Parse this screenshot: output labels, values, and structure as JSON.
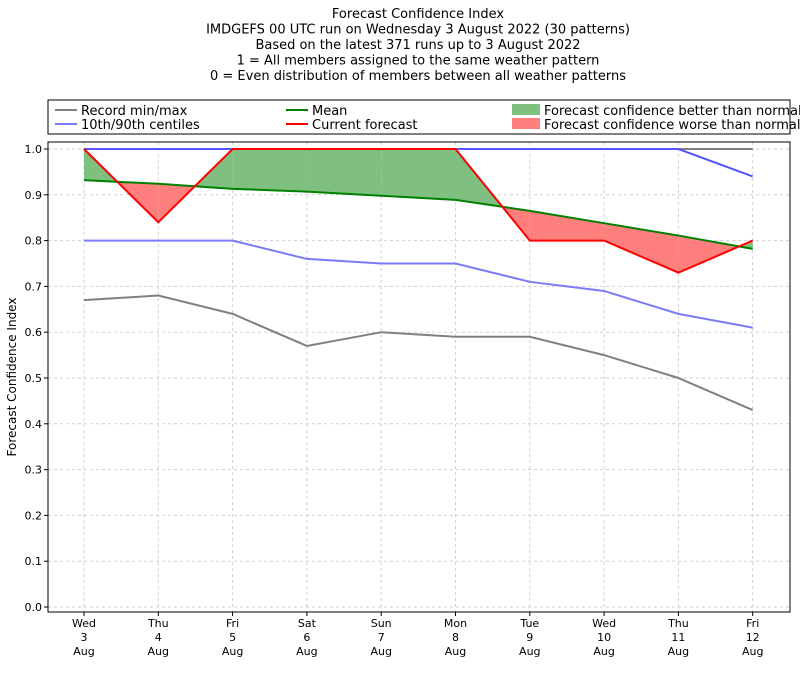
{
  "chart_data": {
    "type": "line",
    "title_lines": [
      "Forecast Confidence Index",
      "IMDGEFS 00 UTC run on Wednesday 3 August 2022 (30 patterns)",
      "Based on the latest 371 runs up to 3 August 2022",
      "1 = All members assigned to the same weather pattern",
      "0 = Even distribution of members between all weather patterns"
    ],
    "ylabel": "Forecast Confidence Index",
    "xlabel": "",
    "ylim": [
      0,
      1.0
    ],
    "yticks": [
      "0.0",
      "0.1",
      "0.2",
      "0.3",
      "0.4",
      "0.5",
      "0.6",
      "0.7",
      "0.8",
      "0.9",
      "1.0"
    ],
    "grid": true,
    "categories": [
      {
        "day": "Wed",
        "date": "3",
        "month": "Aug"
      },
      {
        "day": "Thu",
        "date": "4",
        "month": "Aug"
      },
      {
        "day": "Fri",
        "date": "5",
        "month": "Aug"
      },
      {
        "day": "Sat",
        "date": "6",
        "month": "Aug"
      },
      {
        "day": "Sun",
        "date": "7",
        "month": "Aug"
      },
      {
        "day": "Mon",
        "date": "8",
        "month": "Aug"
      },
      {
        "day": "Tue",
        "date": "9",
        "month": "Aug"
      },
      {
        "day": "Wed",
        "date": "10",
        "month": "Aug"
      },
      {
        "day": "Thu",
        "date": "11",
        "month": "Aug"
      },
      {
        "day": "Fri",
        "date": "12",
        "month": "Aug"
      }
    ],
    "series": [
      {
        "key": "record-min",
        "name": "Record min/max",
        "color": "#808080",
        "values": [
          0.67,
          0.68,
          0.64,
          0.57,
          0.6,
          0.59,
          0.59,
          0.55,
          0.5,
          0.43
        ]
      },
      {
        "key": "record-max",
        "name": "Record min/max",
        "color": "#808080",
        "values": [
          1.0,
          1.0,
          1.0,
          1.0,
          1.0,
          1.0,
          1.0,
          1.0,
          1.0,
          1.0
        ]
      },
      {
        "key": "p10",
        "name": "10th/90th centiles",
        "color": "#7b7bf7",
        "values": [
          0.8,
          0.8,
          0.8,
          0.76,
          0.75,
          0.75,
          0.71,
          0.69,
          0.64,
          0.61
        ]
      },
      {
        "key": "p90",
        "name": "10th/90th centiles",
        "color": "#5555ff",
        "values": [
          1.0,
          1.0,
          1.0,
          1.0,
          1.0,
          1.0,
          1.0,
          1.0,
          1.0,
          0.94
        ]
      },
      {
        "key": "mean",
        "name": "Mean",
        "color": "#008000",
        "values": [
          0.932,
          0.924,
          0.913,
          0.907,
          0.898,
          0.889,
          0.865,
          0.838,
          0.811,
          0.782
        ]
      },
      {
        "key": "current",
        "name": "Current forecast",
        "color": "#ff0000",
        "values": [
          1.0,
          0.84,
          1.0,
          1.0,
          1.0,
          1.0,
          0.8,
          0.8,
          0.73,
          0.8
        ]
      }
    ],
    "fill_better_color": "#7fbf7f",
    "fill_worse_color": "#ff7f7f",
    "legend": {
      "placement": "top",
      "items": [
        {
          "label": "Record min/max",
          "kind": "line",
          "color": "#808080"
        },
        {
          "label": "10th/90th centiles",
          "kind": "line",
          "color": "#7b7bf7"
        },
        {
          "label": "Mean",
          "kind": "line",
          "color": "#008000"
        },
        {
          "label": "Current forecast",
          "kind": "line",
          "color": "#ff0000"
        },
        {
          "label": "Forecast confidence better than normal",
          "kind": "patch",
          "color": "#7fbf7f"
        },
        {
          "label": "Forecast confidence worse than normal",
          "kind": "patch",
          "color": "#ff7f7f"
        }
      ]
    }
  }
}
